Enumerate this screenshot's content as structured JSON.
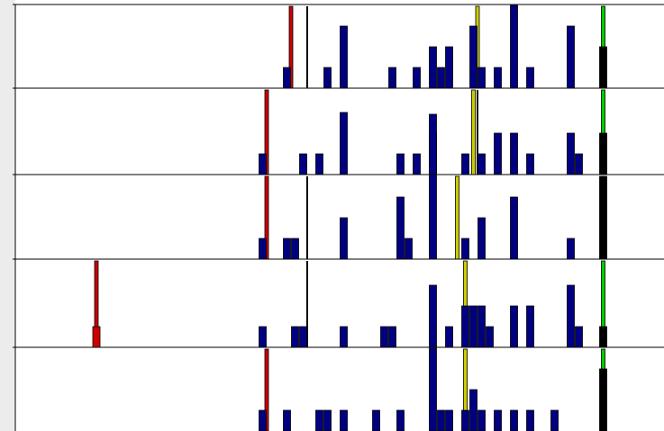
{
  "chart_data": {
    "type": "bar",
    "panels": [
      {
        "name": "",
        "bars": [
          {
            "x": 35.5,
            "h": 1,
            "color": "#000080"
          },
          {
            "x": 40.5,
            "h": 1,
            "color": "#000080"
          },
          {
            "x": 42.5,
            "h": 3,
            "color": "#000080"
          },
          {
            "x": 48.5,
            "h": 1,
            "color": "#000080"
          },
          {
            "x": 51.5,
            "h": 1,
            "color": "#000080"
          },
          {
            "x": 53.5,
            "h": 2,
            "color": "#000080"
          },
          {
            "x": 54.5,
            "h": 1,
            "color": "#000080"
          },
          {
            "x": 55.5,
            "h": 2,
            "color": "#000080"
          },
          {
            "x": 58.5,
            "h": 3,
            "color": "#000080"
          },
          {
            "x": 59.5,
            "h": 1,
            "color": "#000080"
          },
          {
            "x": 61.5,
            "h": 1,
            "color": "#000080"
          },
          {
            "x": 63.5,
            "h": 4,
            "color": "#000080"
          },
          {
            "x": 65.5,
            "h": 1,
            "color": "#000080"
          },
          {
            "x": 70.5,
            "h": 3,
            "color": "#000080"
          },
          {
            "x": 74.5,
            "h": 2,
            "color": "#000000"
          }
        ],
        "markers": [
          {
            "x": 36,
            "color": "#cc0000"
          },
          {
            "x": 38,
            "color": "#000000"
          },
          {
            "x": 59,
            "color": "#cccc00"
          },
          {
            "x": 74.5,
            "color": "#00cc00"
          }
        ]
      },
      {
        "name": "",
        "bars": [
          {
            "x": 32.5,
            "h": 1,
            "color": "#000080"
          },
          {
            "x": 37.5,
            "h": 1,
            "color": "#000080"
          },
          {
            "x": 39.5,
            "h": 1,
            "color": "#000080"
          },
          {
            "x": 42.5,
            "h": 3,
            "color": "#000080"
          },
          {
            "x": 49.5,
            "h": 1,
            "color": "#000080"
          },
          {
            "x": 51.5,
            "h": 1,
            "color": "#000080"
          },
          {
            "x": 53.5,
            "h": 2,
            "color": "#000080"
          },
          {
            "x": 57.5,
            "h": 1,
            "color": "#000080"
          },
          {
            "x": 59.5,
            "h": 1,
            "color": "#000080"
          },
          {
            "x": 61.5,
            "h": 2,
            "color": "#000080"
          },
          {
            "x": 63.5,
            "h": 2,
            "color": "#000080"
          },
          {
            "x": 65.5,
            "h": 1,
            "color": "#000080"
          },
          {
            "x": 70.5,
            "h": 2,
            "color": "#000080"
          },
          {
            "x": 71.5,
            "h": 1,
            "color": "#000080"
          },
          {
            "x": 74.5,
            "h": 2,
            "color": "#000000"
          }
        ],
        "markers": [
          {
            "x": 33,
            "color": "#cc0000"
          },
          {
            "x": 58.5,
            "color": "#cccc00"
          },
          {
            "x": 59,
            "color": "#000000"
          },
          {
            "x": 74.5,
            "color": "#00cc00"
          }
        ]
      },
      {
        "name": "",
        "bars": [
          {
            "x": 32.5,
            "h": 1,
            "color": "#000080"
          },
          {
            "x": 35.5,
            "h": 1,
            "color": "#000080"
          },
          {
            "x": 36.5,
            "h": 1,
            "color": "#000080"
          },
          {
            "x": 42.5,
            "h": 2,
            "color": "#000080"
          },
          {
            "x": 49.5,
            "h": 3,
            "color": "#000080"
          },
          {
            "x": 50.5,
            "h": 1,
            "color": "#000080"
          },
          {
            "x": 53.5,
            "h": 7,
            "color": "#000080"
          },
          {
            "x": 57.5,
            "h": 1,
            "color": "#000080"
          },
          {
            "x": 59.5,
            "h": 2,
            "color": "#000080"
          },
          {
            "x": 63.5,
            "h": 3,
            "color": "#000080"
          },
          {
            "x": 70.5,
            "h": 1,
            "color": "#000080"
          },
          {
            "x": 74.5,
            "h": 4,
            "color": "#000000"
          }
        ],
        "markers": [
          {
            "x": 33,
            "color": "#cc0000"
          },
          {
            "x": 38,
            "color": "#000000"
          },
          {
            "x": 56.5,
            "color": "#cccc00"
          },
          {
            "x": 74.5,
            "color": "#00cc00"
          }
        ]
      },
      {
        "name": "",
        "bars": [
          {
            "x": 12,
            "h": 1,
            "color": "#cc0000"
          },
          {
            "x": 32.5,
            "h": 1,
            "color": "#000080"
          },
          {
            "x": 36.5,
            "h": 1,
            "color": "#000080"
          },
          {
            "x": 37.5,
            "h": 1,
            "color": "#000080"
          },
          {
            "x": 42.5,
            "h": 1,
            "color": "#000080"
          },
          {
            "x": 47.5,
            "h": 1,
            "color": "#000080"
          },
          {
            "x": 48.5,
            "h": 1,
            "color": "#000080"
          },
          {
            "x": 53.5,
            "h": 3,
            "color": "#000080"
          },
          {
            "x": 55.5,
            "h": 1,
            "color": "#000080"
          },
          {
            "x": 57.5,
            "h": 2,
            "color": "#000080"
          },
          {
            "x": 58.5,
            "h": 2,
            "color": "#000080"
          },
          {
            "x": 59.5,
            "h": 2,
            "color": "#000080"
          },
          {
            "x": 60.5,
            "h": 1,
            "color": "#000080"
          },
          {
            "x": 63.5,
            "h": 2,
            "color": "#000080"
          },
          {
            "x": 65.5,
            "h": 2,
            "color": "#000080"
          },
          {
            "x": 70.5,
            "h": 3,
            "color": "#000080"
          },
          {
            "x": 71.5,
            "h": 1,
            "color": "#000080"
          },
          {
            "x": 74.5,
            "h": 1,
            "color": "#000000"
          }
        ],
        "markers": [
          {
            "x": 12,
            "color": "#cc0000"
          },
          {
            "x": 38,
            "color": "#000000"
          },
          {
            "x": 57.5,
            "color": "#cccc00"
          },
          {
            "x": 74.5,
            "color": "#00cc00"
          }
        ]
      },
      {
        "name": "",
        "bars": [
          {
            "x": 32.5,
            "h": 1,
            "color": "#000080"
          },
          {
            "x": 35.5,
            "h": 1,
            "color": "#000080"
          },
          {
            "x": 39.5,
            "h": 1,
            "color": "#000080"
          },
          {
            "x": 40.5,
            "h": 1,
            "color": "#000080"
          },
          {
            "x": 42.5,
            "h": 1,
            "color": "#000080"
          },
          {
            "x": 46.5,
            "h": 1,
            "color": "#000080"
          },
          {
            "x": 49.5,
            "h": 1,
            "color": "#000080"
          },
          {
            "x": 53.5,
            "h": 4,
            "color": "#000080"
          },
          {
            "x": 54.5,
            "h": 1,
            "color": "#000080"
          },
          {
            "x": 55.5,
            "h": 1,
            "color": "#000080"
          },
          {
            "x": 57.5,
            "h": 1,
            "color": "#000080"
          },
          {
            "x": 58.5,
            "h": 2,
            "color": "#000080"
          },
          {
            "x": 59.5,
            "h": 1,
            "color": "#000080"
          },
          {
            "x": 61.5,
            "h": 1,
            "color": "#000080"
          },
          {
            "x": 63.5,
            "h": 1,
            "color": "#000080"
          },
          {
            "x": 65.5,
            "h": 1,
            "color": "#000080"
          },
          {
            "x": 68.5,
            "h": 1,
            "color": "#000080"
          },
          {
            "x": 74.5,
            "h": 3,
            "color": "#000000"
          }
        ],
        "markers": [
          {
            "x": 33,
            "color": "#cc0000"
          },
          {
            "x": 57.5,
            "color": "#cccc00"
          },
          {
            "x": 74.5,
            "color": "#00cc00"
          }
        ]
      }
    ],
    "x_range": [
      2,
      84
    ],
    "y_max": 4,
    "grid": false,
    "title": "",
    "xlabel": "",
    "ylabel": ""
  }
}
